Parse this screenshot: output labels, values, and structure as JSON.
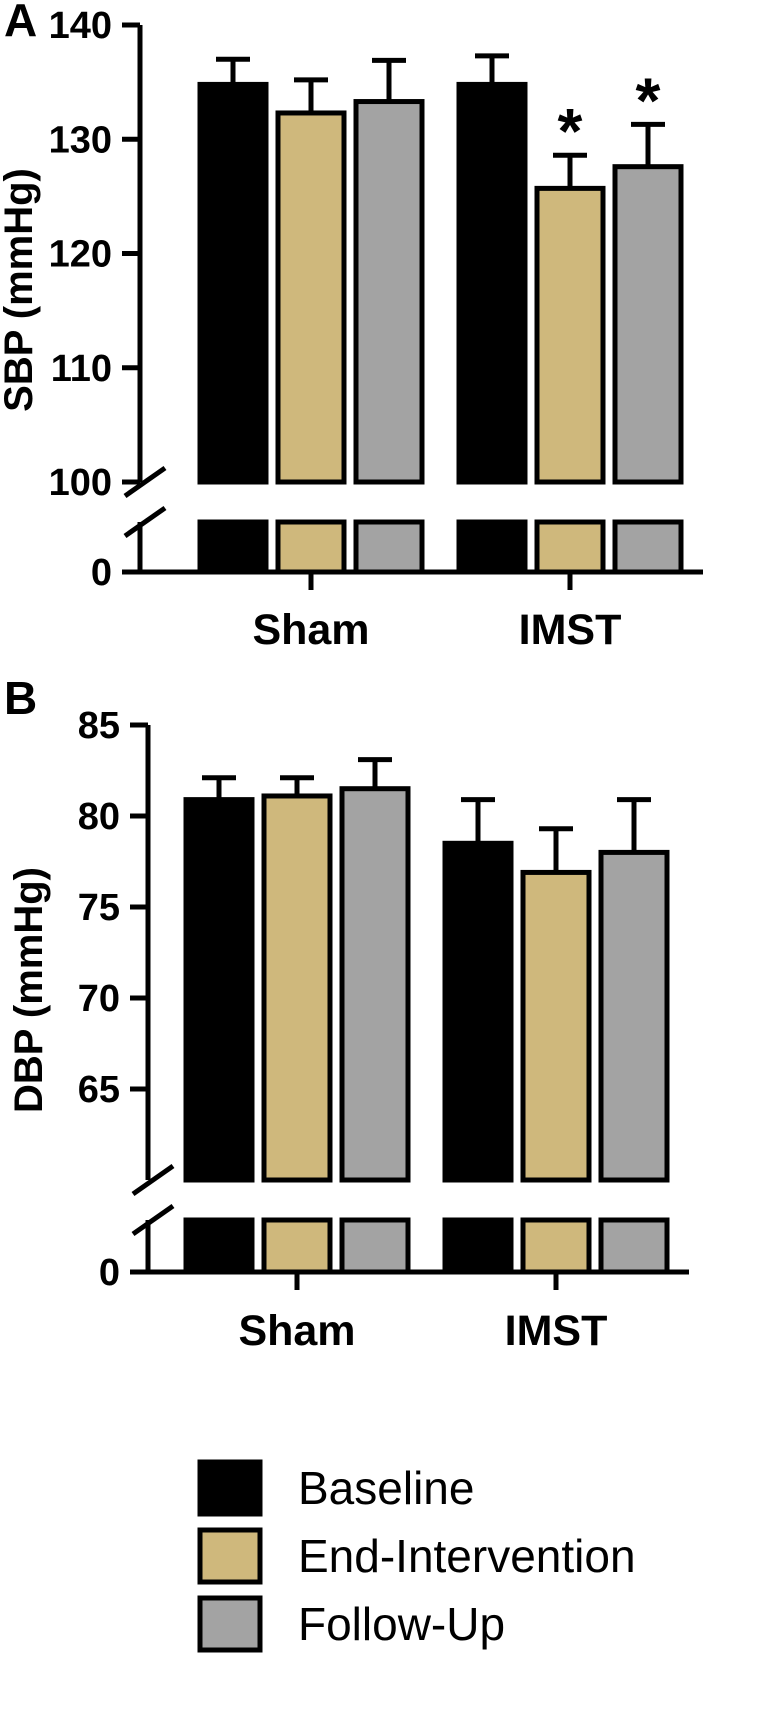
{
  "chart_data": [
    {
      "type": "bar",
      "panel": "A",
      "ylabel": "SBP (mmHg)",
      "categories": [
        "Sham",
        "IMST"
      ],
      "ylim": [
        0,
        140
      ],
      "axis_break": [
        0,
        100
      ],
      "yticks": [
        0,
        100,
        110,
        120,
        130,
        140
      ],
      "series": [
        {
          "name": "Baseline",
          "values": [
            134.8,
            134.8
          ],
          "errors": [
            2.2,
            2.5
          ],
          "significant": [
            false,
            false
          ]
        },
        {
          "name": "End-Intervention",
          "values": [
            132.3,
            125.7
          ],
          "errors": [
            2.9,
            2.9
          ],
          "significant": [
            false,
            true
          ]
        },
        {
          "name": "Follow-Up",
          "values": [
            133.3,
            127.6
          ],
          "errors": [
            3.6,
            3.7
          ],
          "significant": [
            false,
            true
          ]
        }
      ],
      "significance_marker": "*"
    },
    {
      "type": "bar",
      "panel": "B",
      "ylabel": "DBP (mmHg)",
      "categories": [
        "Sham",
        "IMST"
      ],
      "ylim": [
        0,
        85
      ],
      "axis_break": [
        0,
        60
      ],
      "yticks": [
        0,
        65,
        70,
        75,
        80,
        85
      ],
      "series": [
        {
          "name": "Baseline",
          "values": [
            80.9,
            78.5
          ],
          "errors": [
            1.2,
            2.4
          ],
          "significant": [
            false,
            false
          ]
        },
        {
          "name": "End-Intervention",
          "values": [
            81.1,
            76.9
          ],
          "errors": [
            1.0,
            2.4
          ],
          "significant": [
            false,
            false
          ]
        },
        {
          "name": "Follow-Up",
          "values": [
            81.5,
            78.0
          ],
          "errors": [
            1.6,
            2.9
          ],
          "significant": [
            false,
            false
          ]
        }
      ],
      "significance_marker": "*"
    }
  ],
  "legend": {
    "position": "bottom-center",
    "entries": [
      "Baseline",
      "End-Intervention",
      "Follow-Up"
    ]
  },
  "colors": {
    "Baseline": "#000000",
    "End-Intervention": "#cfb87c",
    "Follow-Up": "#a3a3a3"
  }
}
